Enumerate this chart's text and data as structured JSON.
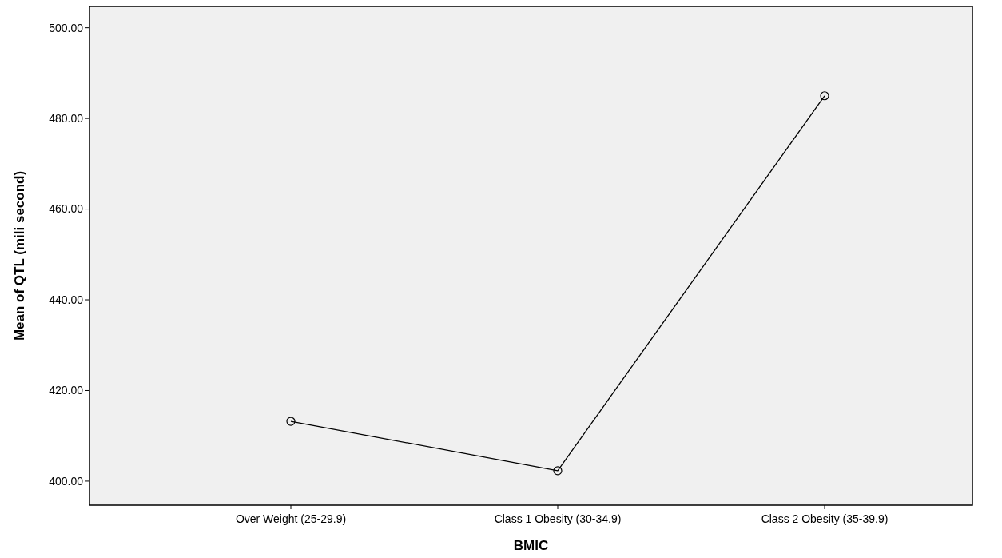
{
  "chart_data": {
    "type": "line",
    "xlabel": "BMIC",
    "ylabel": "Mean of QTL (mili second)",
    "categories": [
      "Over Weight (25-29.9)",
      "Class 1 Obesity (30-34.9)",
      "Class 2 Obesity (35-39.9)"
    ],
    "series": [
      {
        "color": "#000000",
        "values": [
          413.2,
          402.3,
          485.0
        ]
      }
    ],
    "ylim": [
      394.7,
      504.7
    ],
    "yticks": [
      {
        "value": 400,
        "label": "400.00"
      },
      {
        "value": 420,
        "label": "420.00"
      },
      {
        "value": 440,
        "label": "440.00"
      },
      {
        "value": 460,
        "label": "460.00"
      },
      {
        "value": 480,
        "label": "480.00"
      },
      {
        "value": 500,
        "label": "500.00"
      }
    ],
    "grid": false,
    "marker": "circle",
    "line_style": "solid"
  }
}
